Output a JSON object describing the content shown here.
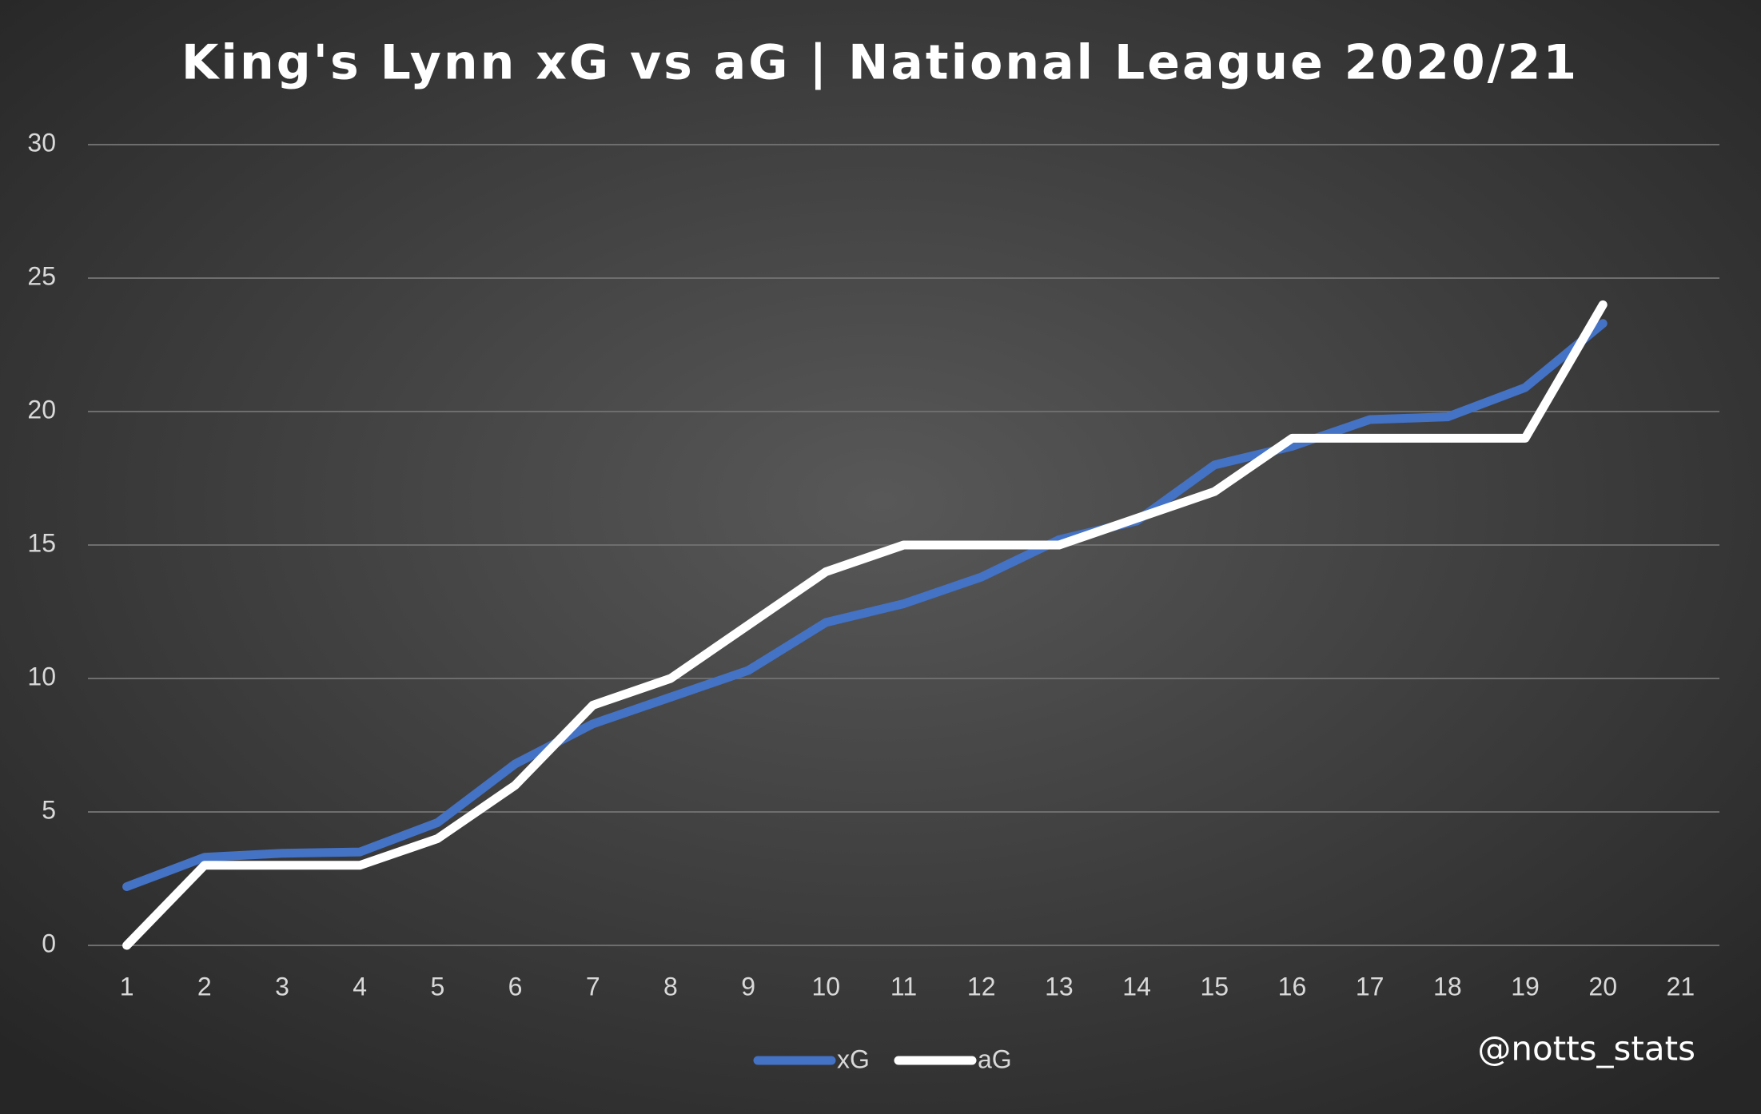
{
  "chart_data": {
    "type": "line",
    "title": "King's Lynn xG vs aG | National League 2020/21",
    "annotation": "@notts_stats",
    "categories": [
      "1",
      "2",
      "3",
      "4",
      "5",
      "6",
      "7",
      "8",
      "9",
      "10",
      "11",
      "12",
      "13",
      "14",
      "15",
      "16",
      "17",
      "18",
      "19",
      "20",
      "21"
    ],
    "series": [
      {
        "name": "xG",
        "color": "#4472c4",
        "values": [
          2.2,
          3.3,
          3.45,
          3.5,
          4.6,
          6.8,
          8.3,
          9.3,
          10.3,
          12.1,
          12.8,
          13.8,
          15.2,
          15.9,
          18.0,
          18.7,
          19.7,
          19.8,
          20.9,
          23.3,
          null
        ]
      },
      {
        "name": "aG",
        "color": "#ffffff",
        "values": [
          0,
          3,
          3,
          3,
          4,
          6,
          9,
          10,
          12,
          14,
          15,
          15,
          15,
          16,
          17,
          19,
          19,
          19,
          19,
          24,
          null
        ]
      }
    ],
    "ylim": [
      0,
      30
    ],
    "yticks": [
      0,
      5,
      10,
      15,
      20,
      25,
      30
    ],
    "grid": true,
    "legend": "bottom"
  }
}
